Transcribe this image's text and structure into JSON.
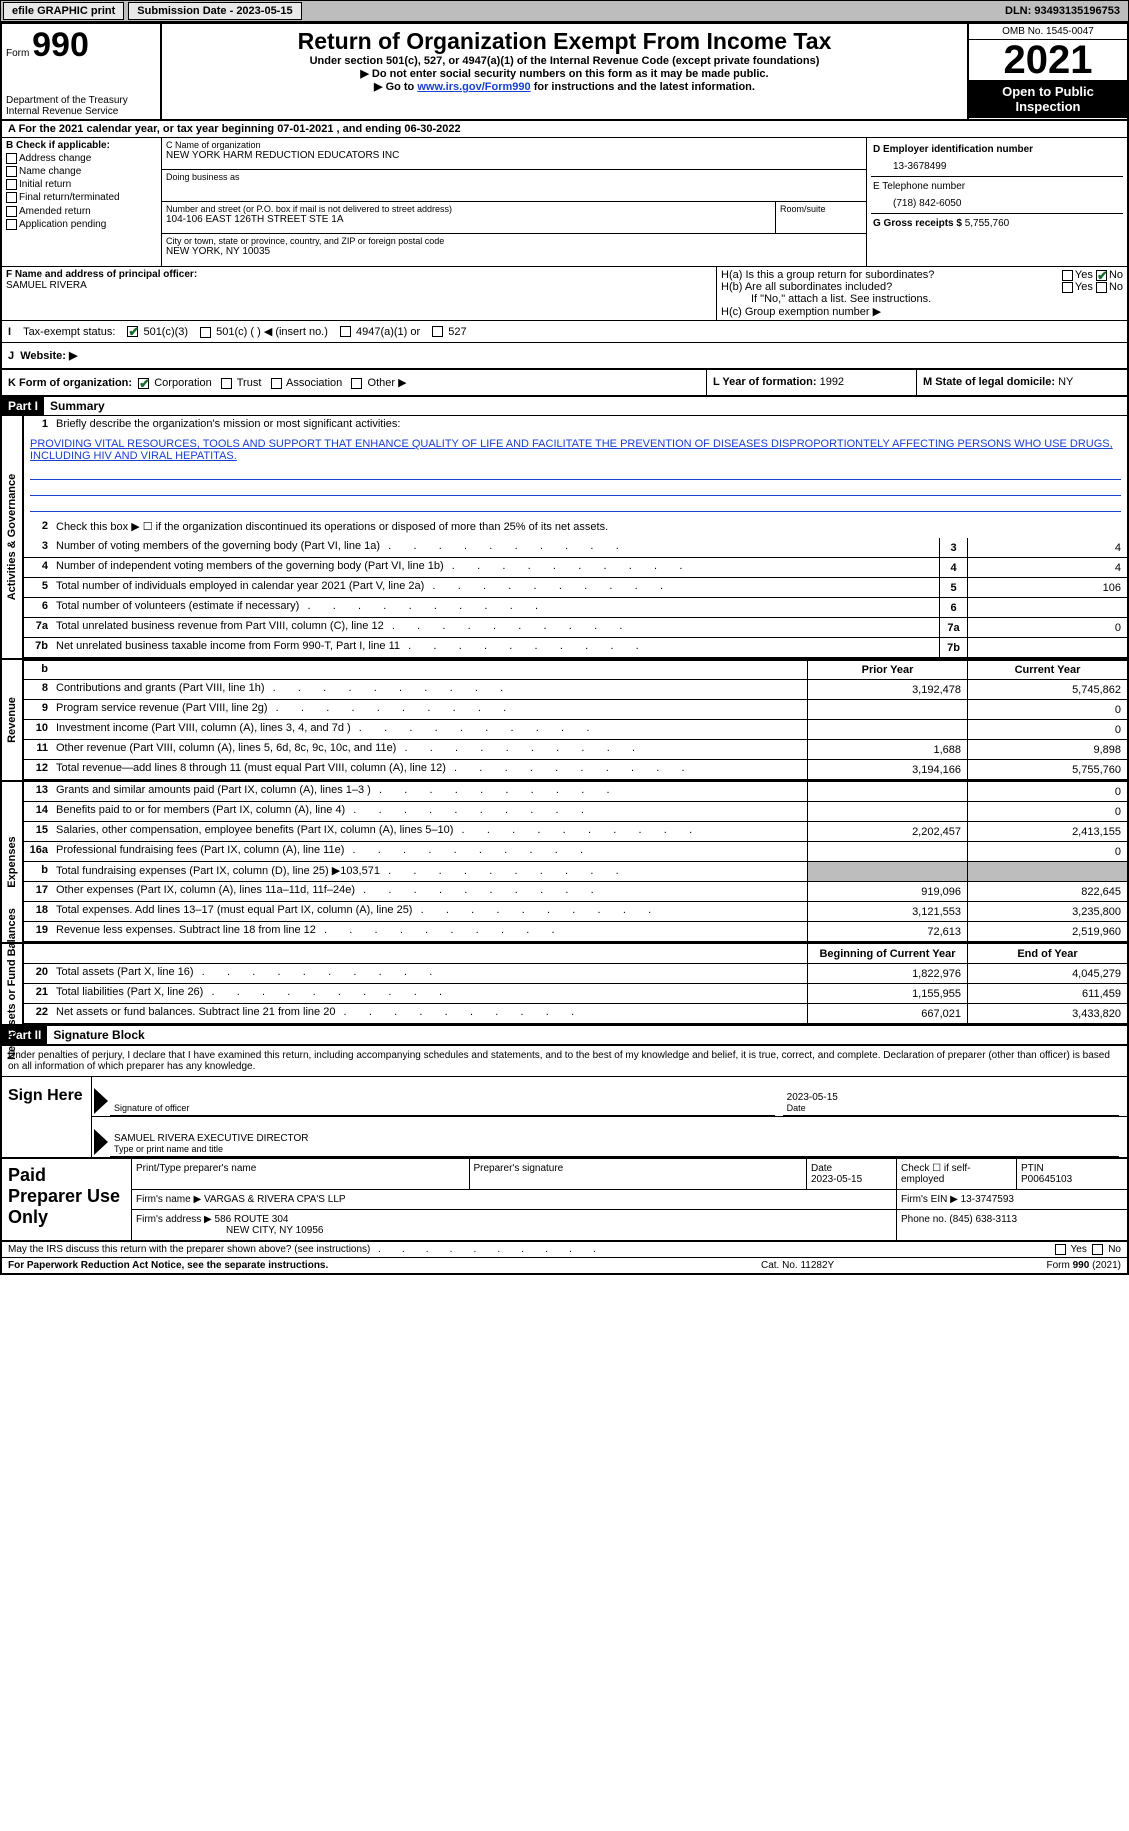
{
  "top": {
    "efile": "efile GRAPHIC print",
    "submission_label": "Submission Date - 2023-05-15",
    "dln": "DLN: 93493135196753"
  },
  "header": {
    "form_word": "Form",
    "form_number": "990",
    "dept": "Department of the Treasury",
    "irs": "Internal Revenue Service",
    "title": "Return of Organization Exempt From Income Tax",
    "subtitle": "Under section 501(c), 527, or 4947(a)(1) of the Internal Revenue Code (except private foundations)",
    "note1": "Do not enter social security numbers on this form as it may be made public.",
    "note2_pre": "Go to ",
    "note2_link": "www.irs.gov/Form990",
    "note2_post": " for instructions and the latest information.",
    "omb": "OMB No. 1545-0047",
    "year": "2021",
    "inspect": "Open to Public Inspection"
  },
  "a_line": "A For the 2021 calendar year, or tax year beginning 07-01-2021   , and ending 06-30-2022",
  "b": {
    "label": "B Check if applicable:",
    "opts": [
      "Address change",
      "Name change",
      "Initial return",
      "Final return/terminated",
      "Amended return",
      "Application pending"
    ]
  },
  "c": {
    "name_lbl": "C Name of organization",
    "name": "NEW YORK HARM REDUCTION EDUCATORS INC",
    "dba_lbl": "Doing business as",
    "addr_lbl": "Number and street (or P.O. box if mail is not delivered to street address)",
    "room_lbl": "Room/suite",
    "addr": "104-106 EAST 126TH STREET STE 1A",
    "city_lbl": "City or town, state or province, country, and ZIP or foreign postal code",
    "city": "NEW YORK, NY  10035"
  },
  "d": {
    "lbl": "D Employer identification number",
    "val": "13-3678499"
  },
  "e": {
    "lbl": "E Telephone number",
    "val": "(718) 842-6050"
  },
  "g": {
    "lbl": "G Gross receipts $",
    "val": "5,755,760"
  },
  "f": {
    "lbl": "F Name and address of principal officer:",
    "val": "SAMUEL RIVERA"
  },
  "h": {
    "a": "H(a)  Is this a group return for subordinates?",
    "b": "H(b)  Are all subordinates included?",
    "b_note": "If \"No,\" attach a list. See instructions.",
    "c": "H(c)  Group exemption number ▶",
    "yes": "Yes",
    "no": "No"
  },
  "i": {
    "lbl": "Tax-exempt status:",
    "o1": "501(c)(3)",
    "o2": "501(c) (  ) ◀ (insert no.)",
    "o3": "4947(a)(1) or",
    "o4": "527"
  },
  "j": {
    "lbl": "Website: ▶"
  },
  "k": {
    "lbl": "K Form of organization:",
    "o1": "Corporation",
    "o2": "Trust",
    "o3": "Association",
    "o4": "Other ▶"
  },
  "l": {
    "lbl": "L Year of formation:",
    "val": "1992"
  },
  "m": {
    "lbl": "M State of legal domicile:",
    "val": "NY"
  },
  "part1": {
    "hdr": "Part I",
    "title": "Summary"
  },
  "summary": {
    "l1_lbl": "Briefly describe the organization's mission or most significant activities:",
    "l1_text": "PROVIDING VITAL RESOURCES, TOOLS AND SUPPORT THAT ENHANCE QUALITY OF LIFE AND FACILITATE THE PREVENTION OF DISEASES DISPROPORTIONTELY AFFECTING PERSONS WHO USE DRUGS, INCLUDING HIV AND VIRAL HEPATITAS.",
    "l2": "Check this box ▶ ☐  if the organization discontinued its operations or disposed of more than 25% of its net assets.",
    "rows_ag": [
      {
        "n": "3",
        "t": "Number of voting members of the governing body (Part VI, line 1a)",
        "v": "4"
      },
      {
        "n": "4",
        "t": "Number of independent voting members of the governing body (Part VI, line 1b)",
        "v": "4"
      },
      {
        "n": "5",
        "t": "Total number of individuals employed in calendar year 2021 (Part V, line 2a)",
        "v": "106"
      },
      {
        "n": "6",
        "t": "Total number of volunteers (estimate if necessary)",
        "v": ""
      },
      {
        "n": "7a",
        "t": "Total unrelated business revenue from Part VIII, column (C), line 12",
        "v": "0"
      },
      {
        "n": "7b",
        "t": "Net unrelated business taxable income from Form 990-T, Part I, line 11",
        "v": ""
      }
    ],
    "col_prior": "Prior Year",
    "col_current": "Current Year",
    "revenue": [
      {
        "n": "8",
        "t": "Contributions and grants (Part VIII, line 1h)",
        "p": "3,192,478",
        "c": "5,745,862"
      },
      {
        "n": "9",
        "t": "Program service revenue (Part VIII, line 2g)",
        "p": "",
        "c": "0"
      },
      {
        "n": "10",
        "t": "Investment income (Part VIII, column (A), lines 3, 4, and 7d )",
        "p": "",
        "c": "0"
      },
      {
        "n": "11",
        "t": "Other revenue (Part VIII, column (A), lines 5, 6d, 8c, 9c, 10c, and 11e)",
        "p": "1,688",
        "c": "9,898"
      },
      {
        "n": "12",
        "t": "Total revenue—add lines 8 through 11 (must equal Part VIII, column (A), line 12)",
        "p": "3,194,166",
        "c": "5,755,760"
      }
    ],
    "expenses": [
      {
        "n": "13",
        "t": "Grants and similar amounts paid (Part IX, column (A), lines 1–3 )",
        "p": "",
        "c": "0"
      },
      {
        "n": "14",
        "t": "Benefits paid to or for members (Part IX, column (A), line 4)",
        "p": "",
        "c": "0"
      },
      {
        "n": "15",
        "t": "Salaries, other compensation, employee benefits (Part IX, column (A), lines 5–10)",
        "p": "2,202,457",
        "c": "2,413,155"
      },
      {
        "n": "16a",
        "t": "Professional fundraising fees (Part IX, column (A), line 11e)",
        "p": "",
        "c": "0"
      },
      {
        "n": "b",
        "t": "Total fundraising expenses (Part IX, column (D), line 25) ▶103,571",
        "p": "shade",
        "c": "shade"
      },
      {
        "n": "17",
        "t": "Other expenses (Part IX, column (A), lines 11a–11d, 11f–24e)",
        "p": "919,096",
        "c": "822,645"
      },
      {
        "n": "18",
        "t": "Total expenses. Add lines 13–17 (must equal Part IX, column (A), line 25)",
        "p": "3,121,553",
        "c": "3,235,800"
      },
      {
        "n": "19",
        "t": "Revenue less expenses. Subtract line 18 from line 12",
        "p": "72,613",
        "c": "2,519,960"
      }
    ],
    "col_begin": "Beginning of Current Year",
    "col_end": "End of Year",
    "netassets": [
      {
        "n": "20",
        "t": "Total assets (Part X, line 16)",
        "p": "1,822,976",
        "c": "4,045,279"
      },
      {
        "n": "21",
        "t": "Total liabilities (Part X, line 26)",
        "p": "1,155,955",
        "c": "611,459"
      },
      {
        "n": "22",
        "t": "Net assets or fund balances. Subtract line 21 from line 20",
        "p": "667,021",
        "c": "3,433,820"
      }
    ]
  },
  "vtabs": {
    "ag": "Activities & Governance",
    "rev": "Revenue",
    "exp": "Expenses",
    "na": "Net Assets or Fund Balances"
  },
  "part2": {
    "hdr": "Part II",
    "title": "Signature Block"
  },
  "decl": "Under penalties of perjury, I declare that I have examined this return, including accompanying schedules and statements, and to the best of my knowledge and belief, it is true, correct, and complete. Declaration of preparer (other than officer) is based on all information of which preparer has any knowledge.",
  "sign": {
    "lbl": "Sign Here",
    "sig_lbl": "Signature of officer",
    "date_lbl": "Date",
    "date": "2023-05-15",
    "name": "SAMUEL RIVERA  EXECUTIVE DIRECTOR",
    "name_lbl": "Type or print name and title"
  },
  "prep": {
    "lbl": "Paid Preparer Use Only",
    "name_lbl": "Print/Type preparer's name",
    "sig_lbl": "Preparer's signature",
    "date_lbl": "Date",
    "date": "2023-05-15",
    "self_lbl": "Check ☐ if self-employed",
    "ptin_lbl": "PTIN",
    "ptin": "P00645103",
    "firm_lbl": "Firm's name  ▶",
    "firm": "VARGAS & RIVERA CPA'S LLP",
    "ein_lbl": "Firm's EIN ▶",
    "ein": "13-3747593",
    "addr_lbl": "Firm's address ▶",
    "addr1": "586 ROUTE 304",
    "addr2": "NEW CITY, NY  10956",
    "phone_lbl": "Phone no.",
    "phone": "(845) 638-3113"
  },
  "footer": {
    "discuss": "May the IRS discuss this return with the preparer shown above? (see instructions)",
    "yes": "Yes",
    "no": "No",
    "pra": "For Paperwork Reduction Act Notice, see the separate instructions.",
    "cat": "Cat. No. 11282Y",
    "form": "Form 990 (2021)"
  }
}
